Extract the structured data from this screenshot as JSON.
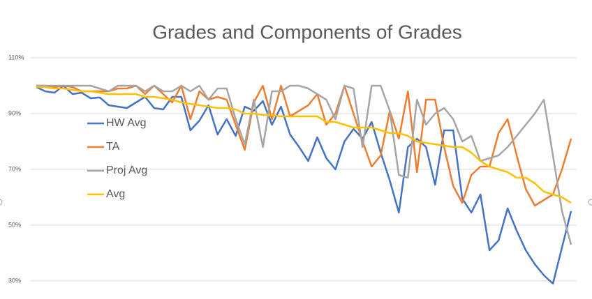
{
  "chart_data": {
    "type": "line",
    "title": "Grades and Components of Grades",
    "categories": [
      null,
      null,
      null,
      null,
      null,
      null,
      null,
      null,
      null,
      null,
      null,
      null,
      null,
      null,
      null,
      null,
      null,
      null,
      null,
      null,
      null,
      null,
      null,
      null,
      null,
      null,
      null,
      null,
      null,
      null,
      null,
      null,
      null,
      null,
      null,
      null,
      null,
      null,
      null,
      null,
      null,
      null,
      null,
      null,
      null,
      null,
      null,
      null,
      null,
      null,
      null,
      null,
      null,
      null,
      null,
      null,
      null,
      null,
      null,
      null
    ],
    "series": [
      {
        "name": "HW Avg",
        "color": "#4472c4",
        "values": [
          99.5,
          98,
          97.5,
          100,
          97,
          97.5,
          95.5,
          95.8,
          93,
          92.5,
          92,
          94,
          96,
          92,
          91.5,
          96,
          96,
          84,
          87.5,
          93,
          82.5,
          88,
          82,
          92.5,
          91,
          94.5,
          86,
          92.5,
          82.5,
          78,
          73,
          81.5,
          74,
          70,
          80,
          84.5,
          81,
          87,
          76,
          66,
          54.5,
          78,
          81,
          78,
          64.5,
          84,
          84,
          59.5,
          54.5,
          61,
          41,
          44.5,
          56,
          48,
          41,
          36,
          32,
          29,
          42,
          55
        ]
      },
      {
        "name": "TA",
        "color": "#ed7d31",
        "values": [
          100,
          100,
          99.5,
          100,
          99.5,
          98,
          98,
          98,
          98,
          99,
          99,
          100,
          97,
          100,
          97,
          94,
          100,
          88,
          98,
          95,
          96,
          95,
          86,
          77,
          94,
          100,
          88,
          100,
          89,
          91,
          93,
          97,
          86,
          90,
          100,
          90,
          80,
          71,
          75,
          91,
          81,
          98,
          69,
          95,
          95,
          78,
          64,
          58,
          68,
          71,
          71,
          83,
          88,
          75,
          63,
          57,
          59,
          61,
          70,
          81
        ]
      },
      {
        "name": "Proj Avg",
        "color": "#a5a5a5",
        "values": [
          100,
          100,
          100,
          100,
          100,
          100,
          100,
          99,
          98,
          100,
          100,
          100,
          98,
          100,
          98,
          98,
          100,
          98,
          100,
          95,
          99,
          99,
          88,
          79,
          95,
          78,
          98,
          98,
          100,
          100,
          99,
          97,
          95,
          88,
          100,
          99,
          78,
          100,
          100,
          91,
          68,
          67,
          95,
          86,
          90,
          92,
          88,
          80,
          82,
          73,
          74,
          75,
          78,
          82,
          86,
          90,
          95,
          75,
          55,
          43
        ]
      },
      {
        "name": "Avg",
        "color": "#ffc000",
        "values": [
          99.5,
          99.5,
          99,
          99,
          98.5,
          98,
          98,
          97.5,
          97,
          97,
          97,
          97,
          96,
          96,
          95.5,
          95,
          94,
          93.5,
          93,
          92.5,
          92,
          92,
          91.5,
          90,
          90,
          89.5,
          89.5,
          89,
          89,
          89,
          89,
          89,
          87,
          87,
          86,
          85,
          85,
          85,
          84,
          83,
          83,
          82,
          80,
          79.5,
          79,
          78.5,
          78,
          78,
          76,
          73,
          71,
          70,
          69,
          67,
          67,
          65,
          62,
          61,
          60,
          58
        ]
      }
    ],
    "ylim": [
      26,
      110
    ],
    "yticks": [
      {
        "value": 30,
        "label": "30%"
      },
      {
        "value": 50,
        "label": "50%"
      },
      {
        "value": 70,
        "label": "70%"
      },
      {
        "value": 90,
        "label": "90%"
      },
      {
        "value": 110,
        "label": "110%"
      }
    ],
    "grid": true,
    "legend": "left"
  }
}
